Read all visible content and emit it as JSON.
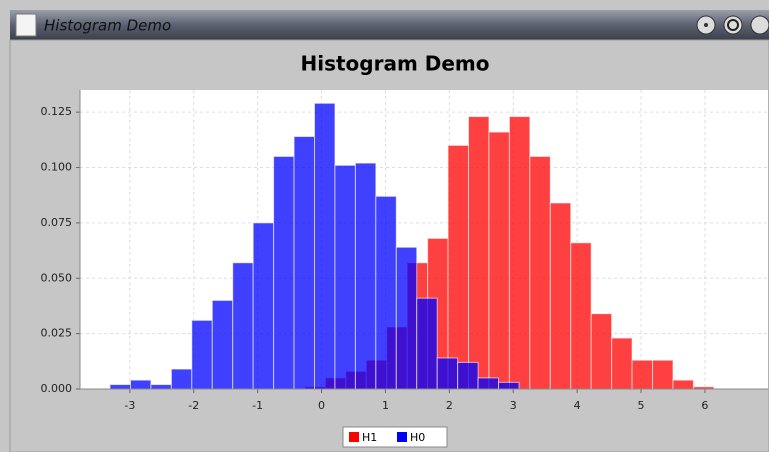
{
  "window_title": "Histogram Demo",
  "chart_data": {
    "type": "histogram",
    "title": "Histogram Demo",
    "series": [
      {
        "name": "H1",
        "color": "#ff0000",
        "bins": [
          -0.26,
          0.06,
          0.38,
          0.7,
          1.02,
          1.34,
          1.66,
          1.98,
          2.3,
          2.62,
          2.94,
          3.26,
          3.58,
          3.9,
          4.22,
          4.54,
          4.86,
          5.18,
          5.5,
          5.82,
          6.14
        ],
        "values": [
          0.001,
          0.005,
          0.008,
          0.013,
          0.028,
          0.057,
          0.068,
          0.11,
          0.123,
          0.116,
          0.123,
          0.105,
          0.084,
          0.066,
          0.034,
          0.023,
          0.013,
          0.013,
          0.004,
          0.001
        ]
      },
      {
        "name": "H0",
        "color": "#0000ff",
        "bins": [
          -3.31,
          -2.99,
          -2.67,
          -2.35,
          -2.03,
          -1.71,
          -1.39,
          -1.07,
          -0.75,
          -0.43,
          -0.11,
          0.21,
          0.53,
          0.85,
          1.17,
          1.49,
          1.81,
          2.13,
          2.45,
          2.77,
          3.09
        ],
        "values": [
          0.002,
          0.004,
          0.002,
          0.009,
          0.031,
          0.04,
          0.057,
          0.075,
          0.105,
          0.114,
          0.129,
          0.101,
          0.102,
          0.087,
          0.064,
          0.041,
          0.014,
          0.012,
          0.005,
          0.003
        ]
      }
    ],
    "xlim": [
      -3.78,
      6.94
    ],
    "ylim": [
      0,
      0.135
    ],
    "xticks": [
      -3,
      -2,
      -1,
      0,
      1,
      2,
      3,
      4,
      5,
      6
    ],
    "yticks": [
      {
        "value": 0,
        "label": "0.000"
      },
      {
        "value": 0.025,
        "label": "0.025"
      },
      {
        "value": 0.05,
        "label": "0.050"
      },
      {
        "value": 0.075,
        "label": "0.075"
      },
      {
        "value": 0.1,
        "label": "0.100"
      },
      {
        "value": 0.125,
        "label": "0.125"
      }
    ],
    "grid": true,
    "legend": "bottom"
  }
}
